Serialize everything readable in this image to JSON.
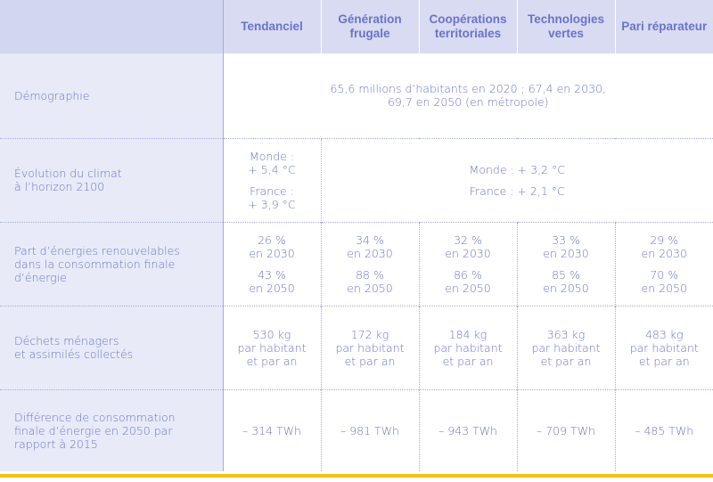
{
  "headers": [
    "Tendanciel",
    "Génération frugale",
    "Coopérations territoriales",
    "Technologies vertes",
    "Pari réparateur"
  ],
  "rows": {
    "demographie": {
      "label": "Démographie",
      "value_line1": "65,6 millions d’habitants en 2020 ; 67,4 en 2030,",
      "value_line2": "69,7 en 2050 (en métropole)"
    },
    "climat": {
      "label_line1": "Évolution du climat",
      "label_line2": "à l’horizon 2100",
      "tendanciel_monde_a": "Monde :",
      "tendanciel_monde_b": "+ 5,4 °C",
      "tendanciel_france_a": "France :",
      "tendanciel_france_b": "+ 3,9 °C",
      "autres_monde": "Monde : + 3,2 °C",
      "autres_france": "France : + 2,1 °C"
    },
    "energies": {
      "label_line1": "Part d’énergies renouvelables",
      "label_line2": "dans la consommation finale",
      "label_line3": "d’énergie",
      "cells": [
        {
          "p2030": "26 %",
          "y2030": "en 2030",
          "p2050": "43 %",
          "y2050": "en 2050"
        },
        {
          "p2030": "34 %",
          "y2030": "en 2030",
          "p2050": "88 %",
          "y2050": "en 2050"
        },
        {
          "p2030": "32 %",
          "y2030": "en 2030",
          "p2050": "86 %",
          "y2050": "en 2050"
        },
        {
          "p2030": "33 %",
          "y2030": "en 2030",
          "p2050": "85 %",
          "y2050": "en 2050"
        },
        {
          "p2030": "29 %",
          "y2030": "en 2030",
          "p2050": "70 %",
          "y2050": "en 2050"
        }
      ]
    },
    "dechets": {
      "label_line1": "Déchets ménagers",
      "label_line2": "et assimilés collectés",
      "cells": [
        {
          "kg": "530 kg",
          "hab": "par habitant",
          "an": "et par an"
        },
        {
          "kg": "172 kg",
          "hab": "par habitant",
          "an": "et par an"
        },
        {
          "kg": "184 kg",
          "hab": "par habitant",
          "an": "et par an"
        },
        {
          "kg": "363 kg",
          "hab": "par habitant",
          "an": "et par an"
        },
        {
          "kg": "483 kg",
          "hab": "par habitant",
          "an": "et par an"
        }
      ]
    },
    "consommation": {
      "label_line1": "Différence de consommation",
      "label_line2": "finale d’énergie en 2050 par",
      "label_line3": "rapport à 2015",
      "cells": [
        "– 314 TWh",
        "– 981 TWh",
        "– 943 TWh",
        "– 709 TWh",
        "– 485 TWh"
      ]
    }
  },
  "colors": {
    "text": "#6a73c9",
    "header_bg": "#d8dbf1",
    "label_bg": "#e8eaf7",
    "accent_rule": "#f2c214"
  }
}
